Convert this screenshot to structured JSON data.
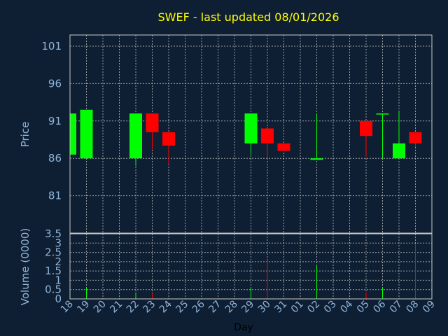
{
  "chart_data": {
    "type": "candlestick",
    "title": "SWEF - last updated 08/01/2026",
    "xlabel": "Day",
    "price_panel": {
      "ylabel": "Price",
      "ylim": [
        76,
        102.5
      ],
      "yticks": [
        81,
        86,
        91,
        96,
        101
      ],
      "grid": true
    },
    "volume_panel": {
      "ylabel": "Volume (0000)",
      "ylim": [
        0,
        3.5
      ],
      "yticks": [
        0,
        0.5,
        1,
        1.5,
        2,
        2.5,
        3,
        3.5
      ],
      "ytick_labels": [
        "0",
        "0.5",
        "1",
        "1.5",
        "2",
        "2.5",
        "3",
        "3.5"
      ],
      "grid": true
    },
    "categories": [
      "18",
      "19",
      "20",
      "21",
      "22",
      "23",
      "24",
      "25",
      "26",
      "27",
      "28",
      "29",
      "30",
      "31",
      "01",
      "02",
      "03",
      "04",
      "05",
      "06",
      "07",
      "08",
      "09"
    ],
    "up_color": "#00ff00",
    "down_color": "#ff0000",
    "candles": [
      {
        "x": "18",
        "open": 86.5,
        "high": 92,
        "low": 86.5,
        "close": 92,
        "volume": 0
      },
      {
        "x": "19",
        "open": 86,
        "high": 92.5,
        "low": 86,
        "close": 92.5,
        "volume": 0.6
      },
      {
        "x": "22",
        "open": 86,
        "high": 92,
        "low": 85,
        "close": 92,
        "volume": 0.35
      },
      {
        "x": "23",
        "open": 92,
        "high": 92,
        "low": 87.2,
        "close": 89.5,
        "volume": 0.3
      },
      {
        "x": "24",
        "open": 89.5,
        "high": 89.5,
        "low": 85.2,
        "close": 87.7,
        "volume": 0
      },
      {
        "x": "29",
        "open": 88,
        "high": 92,
        "low": 86.5,
        "close": 92,
        "volume": 0.6
      },
      {
        "x": "30",
        "open": 90,
        "high": 90,
        "low": 86,
        "close": 88,
        "volume": 2.1
      },
      {
        "x": "31",
        "open": 88,
        "high": 88,
        "low": 87,
        "close": 87,
        "volume": 0
      },
      {
        "x": "02",
        "open": 85.8,
        "high": 92,
        "low": 85.8,
        "close": 86,
        "volume": 1.8
      },
      {
        "x": "05",
        "open": 91,
        "high": 91,
        "low": 86.2,
        "close": 89,
        "volume": 0.35
      },
      {
        "x": "06",
        "open": 92,
        "high": 92,
        "low": 86,
        "close": 92,
        "volume": 0.6
      },
      {
        "x": "07",
        "open": 86,
        "high": 92.2,
        "low": 86,
        "close": 88,
        "volume": 0
      },
      {
        "x": "08",
        "open": 89.5,
        "high": 89.5,
        "low": 87.5,
        "close": 88,
        "volume": 2.95
      }
    ]
  }
}
